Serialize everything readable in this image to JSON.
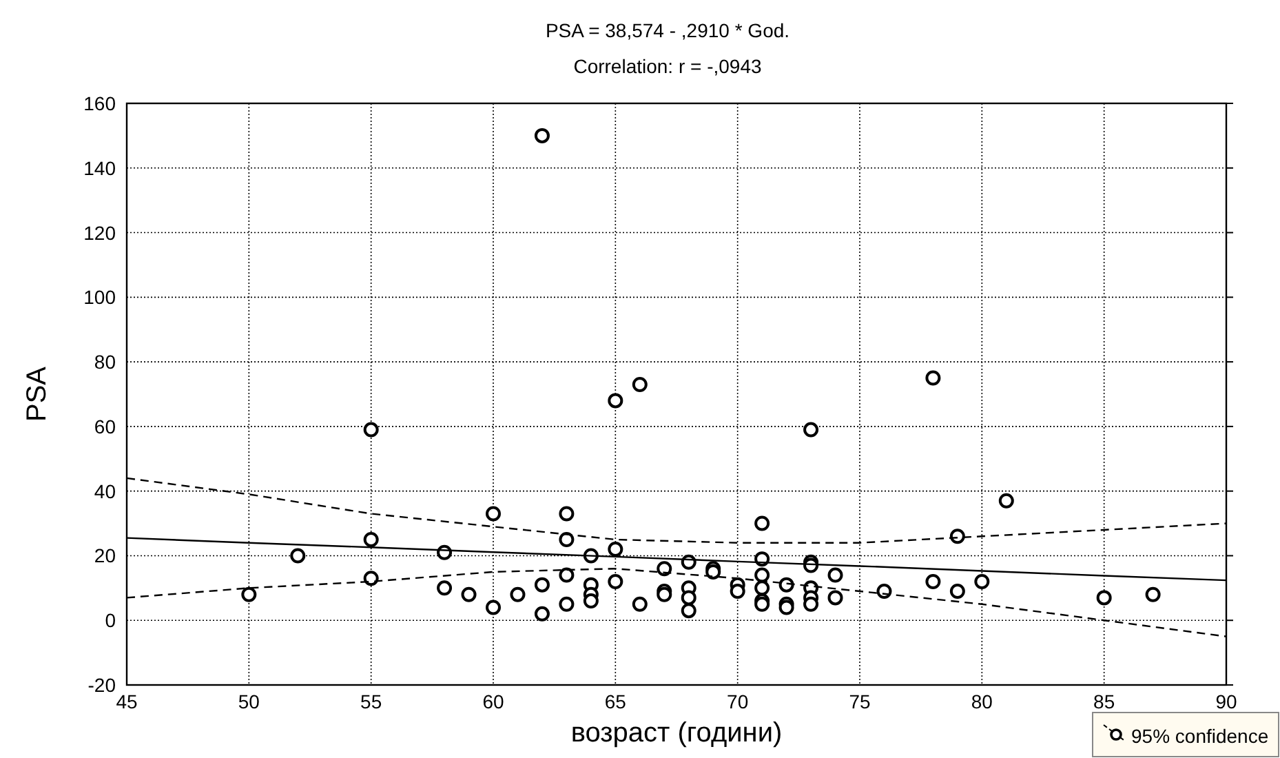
{
  "chart_data": {
    "type": "scatter",
    "title": "PSA  = 38,574 - ,2910  * God.",
    "subtitle": "Correlation: r = -,0943",
    "xlabel": "возраст (години)",
    "ylabel": "PSA",
    "xlim": [
      45,
      90
    ],
    "ylim": [
      -20,
      160
    ],
    "xticks": [
      45,
      50,
      55,
      60,
      65,
      70,
      75,
      80,
      85,
      90
    ],
    "yticks": [
      -20,
      0,
      20,
      40,
      60,
      80,
      100,
      120,
      140,
      160
    ],
    "grid": true,
    "legend": "bottom right",
    "marker": "circle",
    "series": [
      {
        "color": "#000000",
        "x": [
          50,
          52,
          55,
          55,
          55,
          58,
          58,
          59,
          60,
          60,
          61,
          62,
          62,
          62,
          63,
          63,
          63,
          63,
          64,
          64,
          64,
          64,
          65,
          65,
          65,
          66,
          66,
          67,
          67,
          67,
          68,
          68,
          68,
          68,
          69,
          69,
          70,
          70,
          71,
          71,
          71,
          71,
          71,
          71,
          72,
          72,
          72,
          73,
          73,
          73,
          73,
          73,
          73,
          74,
          74,
          76,
          78,
          78,
          79,
          79,
          80,
          81,
          85,
          87
        ],
        "values": [
          8,
          20,
          59,
          25,
          13,
          21,
          10,
          8,
          33,
          4,
          8,
          150,
          11,
          2,
          33,
          25,
          14,
          5,
          20,
          11,
          8,
          6,
          68,
          22,
          12,
          73,
          5,
          16,
          9,
          8,
          18,
          10,
          7,
          3,
          16,
          15,
          11,
          9,
          30,
          19,
          14,
          10,
          6,
          5,
          11,
          5,
          4,
          59,
          18,
          17,
          10,
          7,
          5,
          14,
          7,
          9,
          75,
          12,
          26,
          9,
          12,
          37,
          7,
          8
        ]
      },
      {
        "type": "line",
        "color": "#000000",
        "marker": "none",
        "line_style": "solid",
        "x": [
          45,
          50,
          55,
          60,
          65,
          70,
          75,
          80,
          85,
          90
        ],
        "values": [
          25.5,
          24.0,
          22.6,
          21.1,
          19.7,
          18.2,
          16.8,
          15.3,
          13.8,
          12.4
        ]
      },
      {
        "type": "line",
        "name": "95% confidence",
        "color": "#000000",
        "marker": "none",
        "line_style": "dashed",
        "x": [
          45,
          50,
          55,
          60,
          65,
          70,
          75,
          80,
          85,
          90
        ],
        "values": [
          44,
          39,
          33,
          29,
          25,
          24,
          24,
          26,
          28,
          30
        ]
      },
      {
        "type": "line",
        "color": "#000000",
        "marker": "none",
        "line_style": "dashed",
        "x": [
          45,
          50,
          55,
          60,
          65,
          70,
          75,
          80,
          85,
          90
        ],
        "values": [
          7,
          10,
          12,
          15,
          16,
          13,
          9,
          5,
          0,
          -5
        ]
      }
    ]
  }
}
